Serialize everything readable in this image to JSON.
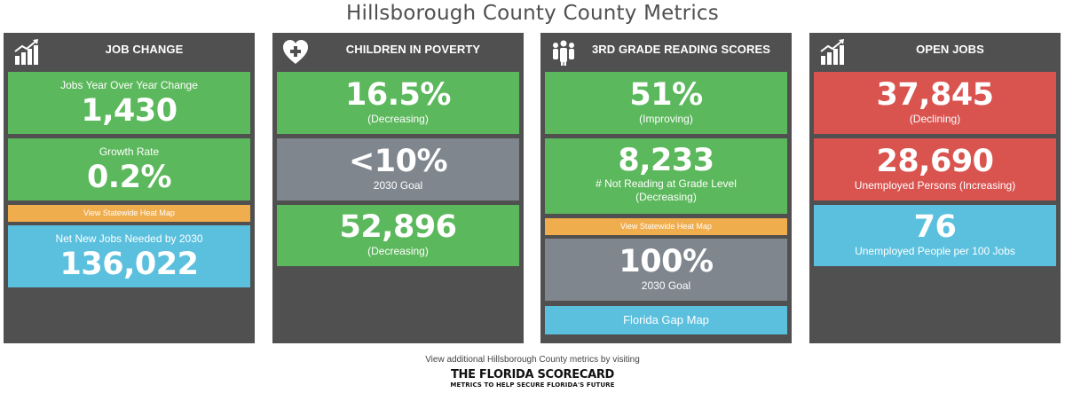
{
  "page": {
    "title": "Hillsborough County County Metrics"
  },
  "colors": {
    "green": "#5cb85c",
    "gray": "#7f868e",
    "red": "#d9534f",
    "blue": "#5bc0de",
    "orange": "#f0ad4e",
    "panel": "#505050"
  },
  "panels": [
    {
      "title": "JOB CHANGE",
      "icon": "bar-chart-growth-icon",
      "tiles": [
        {
          "label": "Jobs Year Over Year Change",
          "value": "1,430"
        },
        {
          "label": "Growth Rate",
          "value": "0.2%"
        },
        {
          "link": "View Statewide Heat Map"
        },
        {
          "label": "Net New Jobs Needed by 2030",
          "value": "136,022"
        }
      ]
    },
    {
      "title": "CHILDREN IN POVERTY",
      "icon": "heart-plus-icon",
      "tiles": [
        {
          "value": "16.5%",
          "note": "(Decreasing)"
        },
        {
          "value": "<10%",
          "note": "2030 Goal"
        },
        {
          "value": "52,896",
          "note": "(Decreasing)"
        }
      ]
    },
    {
      "title": "3RD GRADE READING SCORES",
      "icon": "group-people-icon",
      "tiles": [
        {
          "value": "51%",
          "note": "(Improving)"
        },
        {
          "value": "8,233",
          "note": "# Not Reading at Grade Level",
          "note2": "(Decreasing)"
        },
        {
          "link": "View Statewide Heat Map"
        },
        {
          "value": "100%",
          "note": "2030 Goal"
        },
        {
          "link": "Florida Gap Map"
        }
      ]
    },
    {
      "title": "OPEN JOBS",
      "icon": "bar-chart-growth-icon",
      "tiles": [
        {
          "value": "37,845",
          "note": "(Declining)"
        },
        {
          "value": "28,690",
          "note": "Unemployed Persons (Increasing)"
        },
        {
          "value": "76",
          "note": "Unemployed People per 100 Jobs"
        }
      ]
    }
  ],
  "footer": {
    "text": "View additional Hillsborough County metrics by visiting",
    "logo_main": "THE FLORIDA SCORECARD",
    "logo_sub": "METRICS TO HELP SECURE FLORIDA'S FUTURE"
  }
}
